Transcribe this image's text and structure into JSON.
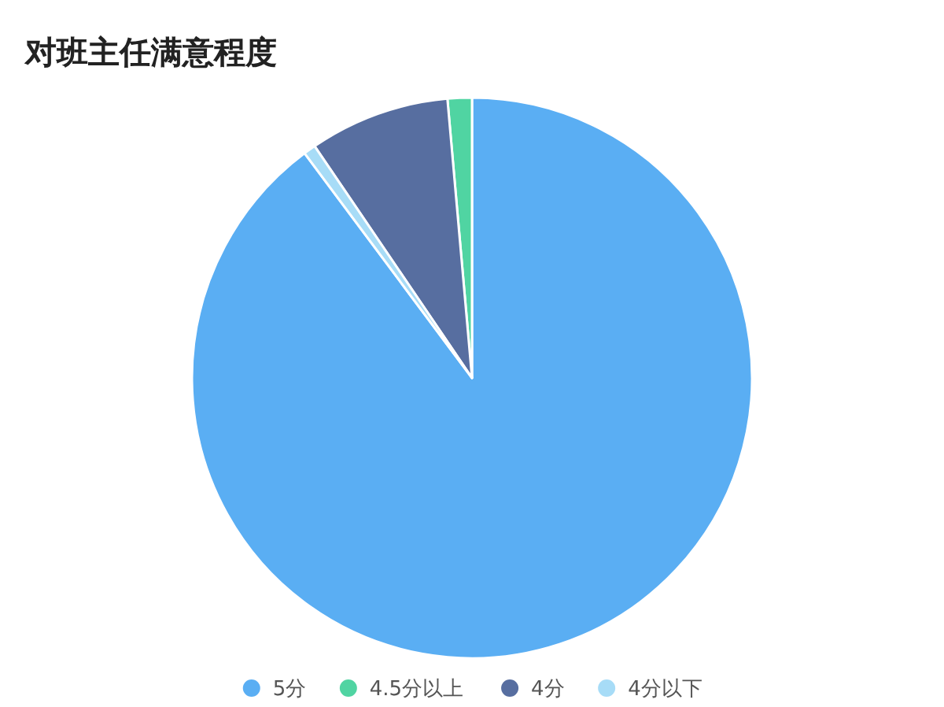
{
  "chart_data": {
    "type": "pie",
    "title": "对班主任满意程度",
    "categories": [
      "5分",
      "4.5分以上",
      "4分",
      "4分以下"
    ],
    "values": [
      89.8,
      1.4,
      8.1,
      0.7
    ],
    "colors": [
      "#5aaef3",
      "#50d4a2",
      "#576ea0",
      "#a7dcf7"
    ],
    "legend": "bottom"
  }
}
